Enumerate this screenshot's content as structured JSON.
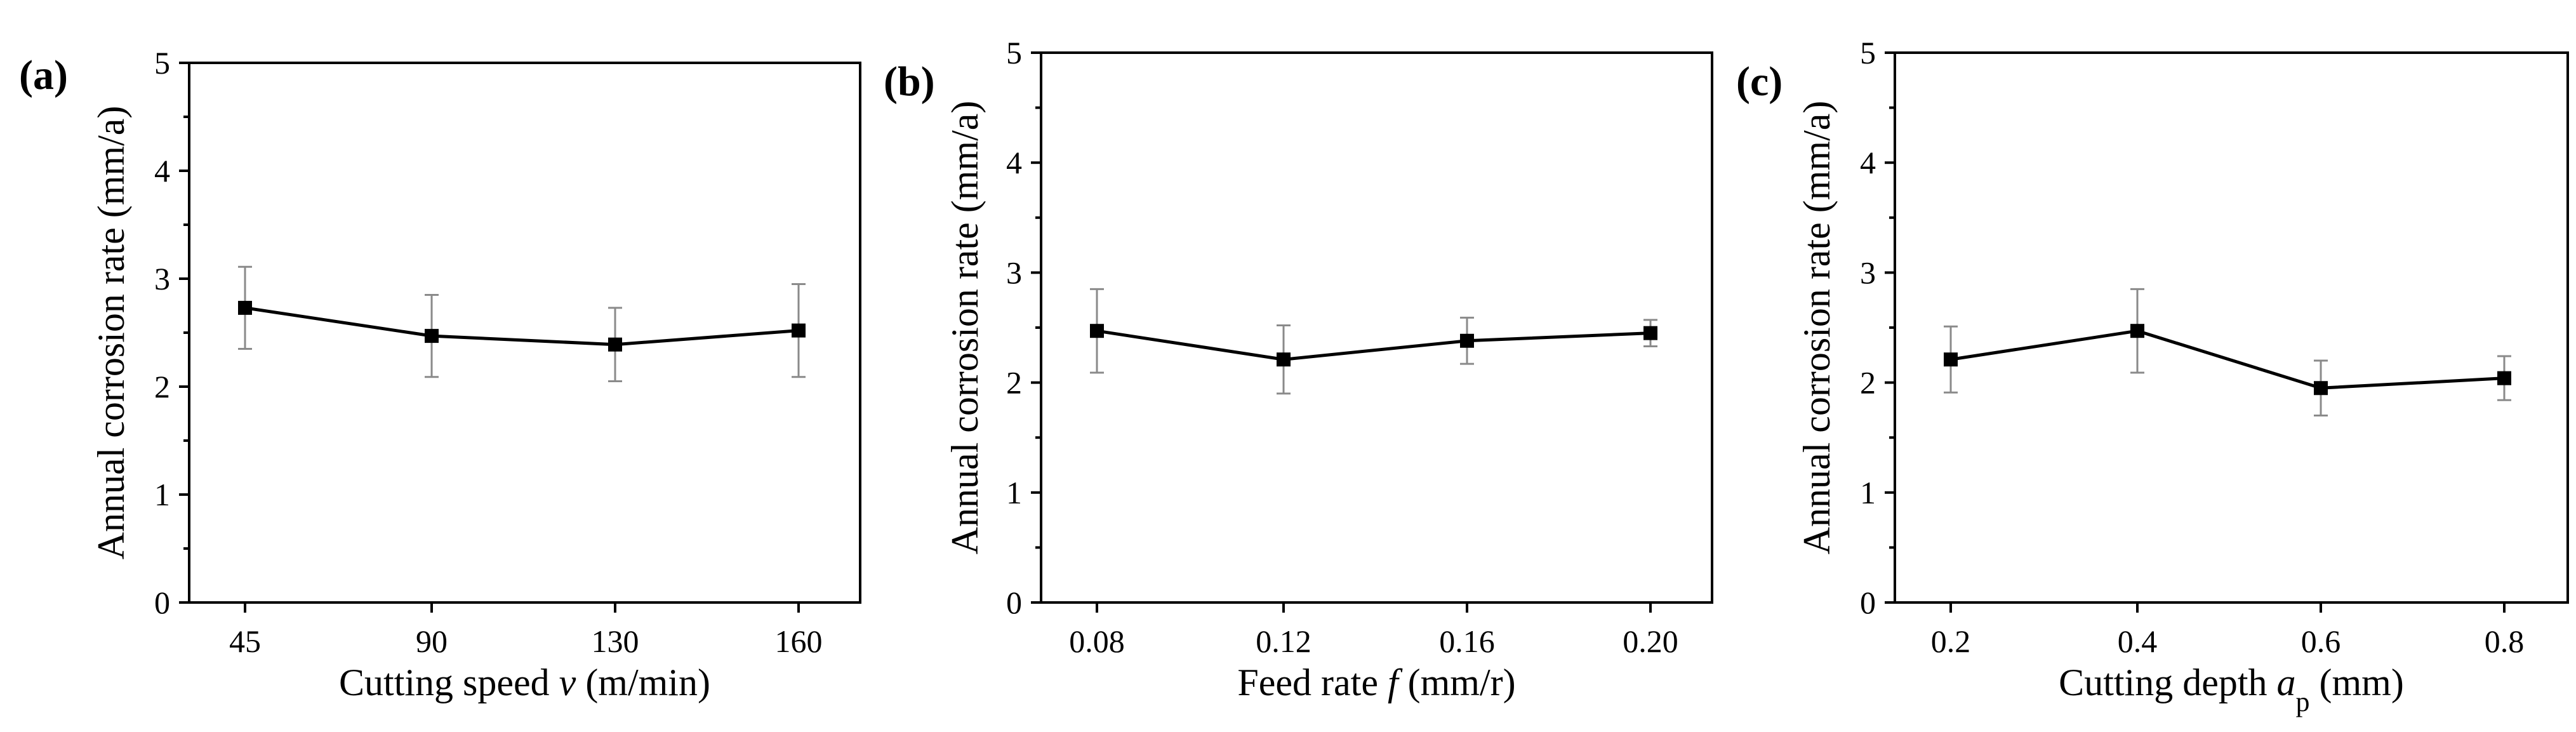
{
  "chart_data": [
    {
      "type": "line",
      "panel": "(a)",
      "xlabel_prefix": "Cutting speed ",
      "xlabel_var": "v",
      "xlabel_sub": "",
      "xlabel_suffix": " (m/min)",
      "ylabel": "Annual corrosion rate (mm/a)",
      "categories": [
        "45",
        "90",
        "130",
        "160"
      ],
      "values": [
        2.73,
        2.47,
        2.39,
        2.52
      ],
      "errors": [
        0.38,
        0.38,
        0.34,
        0.43
      ],
      "ylim": [
        0,
        5
      ],
      "yticks": [
        "0",
        "1",
        "2",
        "3",
        "4",
        "5"
      ]
    },
    {
      "type": "line",
      "panel": "(b)",
      "xlabel_prefix": "Feed rate ",
      "xlabel_var": "f",
      "xlabel_sub": "",
      "xlabel_suffix": " (mm/r)",
      "ylabel": "Annual corrosion rate (mm/a)",
      "categories": [
        "0.08",
        "0.12",
        "0.16",
        "0.20"
      ],
      "values": [
        2.47,
        2.21,
        2.38,
        2.45
      ],
      "errors": [
        0.38,
        0.31,
        0.21,
        0.12
      ],
      "ylim": [
        0,
        5
      ],
      "yticks": [
        "0",
        "1",
        "2",
        "3",
        "4",
        "5"
      ]
    },
    {
      "type": "line",
      "panel": "(c)",
      "xlabel_prefix": "Cutting depth ",
      "xlabel_var": "a",
      "xlabel_sub": "p",
      "xlabel_suffix": " (mm)",
      "ylabel": "Annual corrosion rate (mm/a)",
      "categories": [
        "0.2",
        "0.4",
        "0.6",
        "0.8"
      ],
      "values": [
        2.21,
        2.47,
        1.95,
        2.04
      ],
      "errors": [
        0.3,
        0.38,
        0.25,
        0.2
      ],
      "ylim": [
        0,
        5
      ],
      "yticks": [
        "0",
        "1",
        "2",
        "3",
        "4",
        "5"
      ]
    }
  ]
}
